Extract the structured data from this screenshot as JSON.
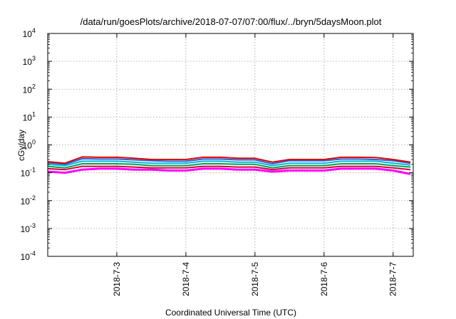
{
  "chart_data": {
    "type": "line",
    "title": "/data/run/goesPlots/archive/2018-07-07/07:00/flux/../bryn/5daysMoon.plot",
    "xlabel": "Coordinated Universal Time (UTC)",
    "ylabel": "cGy/day",
    "yscale": "log",
    "ylim": [
      0.0001,
      10000
    ],
    "xlim": [
      "2018-07-02T00:00",
      "2018-07-07T07:00"
    ],
    "grid": true,
    "legend": "none",
    "x_ticks": [
      "2018-7-3",
      "2018-7-4",
      "2018-7-5",
      "2018-7-6",
      "2018-7-7"
    ],
    "y_ticks": [
      {
        "base": "10",
        "exp": "-4"
      },
      {
        "base": "10",
        "exp": "-3"
      },
      {
        "base": "10",
        "exp": "-2"
      },
      {
        "base": "10",
        "exp": "-1"
      },
      {
        "base": "10",
        "exp": "0"
      },
      {
        "base": "10",
        "exp": "1"
      },
      {
        "base": "10",
        "exp": "2"
      },
      {
        "base": "10",
        "exp": "3"
      },
      {
        "base": "10",
        "exp": "4"
      }
    ],
    "x": [
      "2018-07-02T00:00",
      "2018-07-02T06:00",
      "2018-07-02T12:00",
      "2018-07-02T18:00",
      "2018-07-03T00:00",
      "2018-07-03T06:00",
      "2018-07-03T12:00",
      "2018-07-03T18:00",
      "2018-07-04T00:00",
      "2018-07-04T06:00",
      "2018-07-04T12:00",
      "2018-07-04T18:00",
      "2018-07-05T00:00",
      "2018-07-05T06:00",
      "2018-07-05T12:00",
      "2018-07-05T18:00",
      "2018-07-06T00:00",
      "2018-07-06T06:00",
      "2018-07-06T12:00",
      "2018-07-06T18:00",
      "2018-07-07T00:00",
      "2018-07-07T06:00"
    ],
    "series": [
      {
        "color": "#ff00ff",
        "values": [
          0.11,
          0.1,
          0.13,
          0.14,
          0.14,
          0.13,
          0.13,
          0.12,
          0.12,
          0.14,
          0.14,
          0.13,
          0.13,
          0.11,
          0.12,
          0.12,
          0.12,
          0.14,
          0.14,
          0.14,
          0.12,
          0.09
        ]
      },
      {
        "color": "#d0003a",
        "values": [
          0.14,
          0.13,
          0.17,
          0.17,
          0.17,
          0.16,
          0.15,
          0.15,
          0.15,
          0.17,
          0.17,
          0.16,
          0.16,
          0.13,
          0.15,
          0.15,
          0.15,
          0.17,
          0.17,
          0.17,
          0.15,
          0.13
        ]
      },
      {
        "color": "#00a050",
        "values": [
          0.17,
          0.15,
          0.21,
          0.21,
          0.21,
          0.2,
          0.18,
          0.18,
          0.18,
          0.21,
          0.21,
          0.2,
          0.2,
          0.15,
          0.18,
          0.18,
          0.18,
          0.21,
          0.21,
          0.21,
          0.18,
          0.16
        ]
      },
      {
        "color": "#00b8e0",
        "values": [
          0.2,
          0.18,
          0.26,
          0.26,
          0.26,
          0.24,
          0.22,
          0.22,
          0.22,
          0.26,
          0.26,
          0.24,
          0.24,
          0.18,
          0.22,
          0.22,
          0.22,
          0.26,
          0.26,
          0.26,
          0.22,
          0.19
        ]
      },
      {
        "color": "#3060d0",
        "values": [
          0.23,
          0.2,
          0.32,
          0.31,
          0.31,
          0.29,
          0.27,
          0.26,
          0.26,
          0.31,
          0.31,
          0.29,
          0.29,
          0.21,
          0.27,
          0.27,
          0.27,
          0.31,
          0.31,
          0.3,
          0.27,
          0.22
        ]
      },
      {
        "color": "#e00000",
        "values": [
          0.25,
          0.22,
          0.37,
          0.36,
          0.36,
          0.33,
          0.3,
          0.3,
          0.3,
          0.36,
          0.36,
          0.33,
          0.33,
          0.24,
          0.3,
          0.3,
          0.3,
          0.36,
          0.36,
          0.35,
          0.3,
          0.24
        ]
      }
    ]
  }
}
